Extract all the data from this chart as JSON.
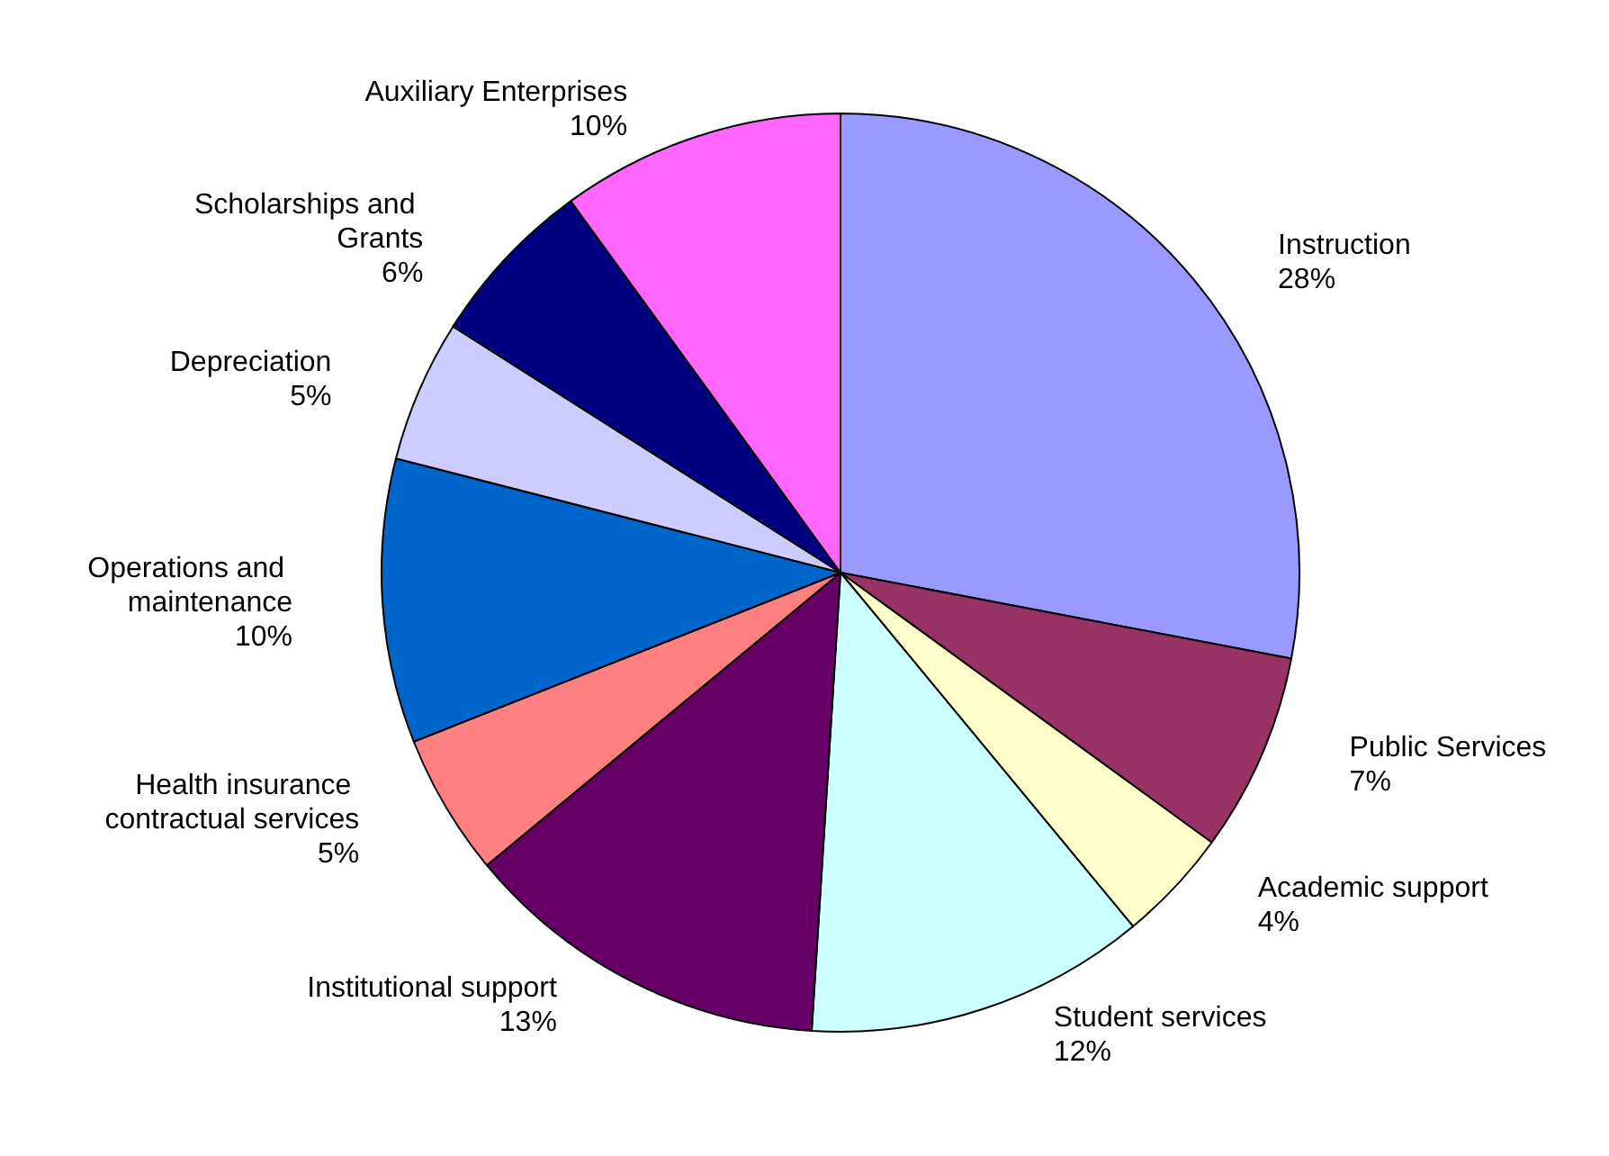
{
  "chart_data": {
    "type": "pie",
    "categories": [
      "Instruction",
      "Public Services",
      "Academic support",
      "Student services",
      "Institutional support",
      "Health insurance contractual services",
      "Operations and maintenance",
      "Depreciation",
      "Scholarships and Grants",
      "Auxiliary Enterprises"
    ],
    "values": [
      28,
      7,
      4,
      12,
      13,
      5,
      10,
      5,
      6,
      10
    ],
    "value_labels": [
      "28%",
      "7%",
      "4%",
      "12%",
      "13%",
      "5%",
      "10%",
      "5%",
      "6%",
      "10%"
    ],
    "colors": [
      "#9999ff",
      "#993366",
      "#ffffcc",
      "#ccffff",
      "#660066",
      "#ff8080",
      "#0066cc",
      "#ccccff",
      "#000080",
      "#ff66ff"
    ],
    "legend": false
  }
}
